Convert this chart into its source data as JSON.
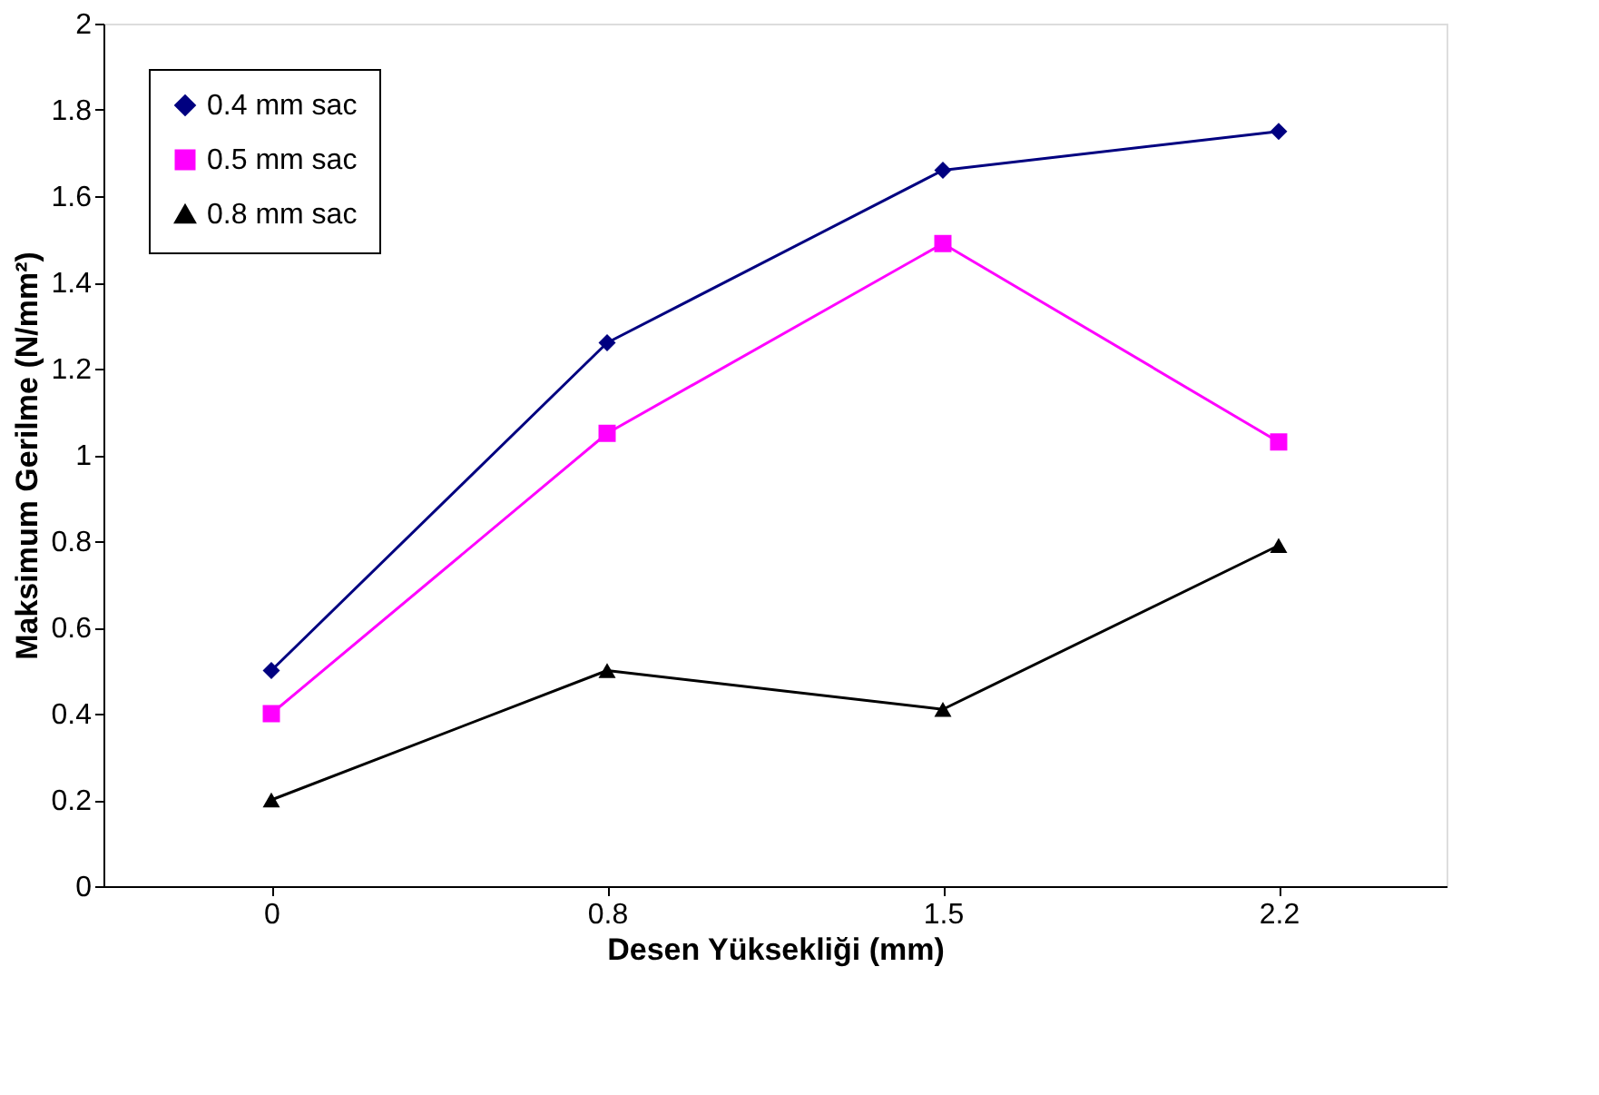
{
  "chart_data": {
    "type": "line",
    "xlabel": "Desen Yüksekliği (mm)",
    "ylabel": "Maksimum Gerilme (N/mm²)",
    "categories": [
      "0",
      "0.8",
      "1.5",
      "2.2"
    ],
    "ylim": [
      0,
      2
    ],
    "yticks": [
      0,
      0.2,
      0.4,
      0.6,
      0.8,
      1,
      1.2,
      1.4,
      1.6,
      1.8,
      2
    ],
    "grid": false,
    "legend": "top left",
    "line_style": "solid",
    "series": [
      {
        "name": "0.4 mm sac",
        "color": "#000080",
        "marker": "diamond",
        "values": [
          0.5,
          1.26,
          1.66,
          1.75
        ]
      },
      {
        "name": "0.5 mm sac",
        "color": "#ff00ff",
        "marker": "square",
        "values": [
          0.4,
          1.05,
          1.49,
          1.03
        ]
      },
      {
        "name": "0.8 mm sac",
        "color": "#000000",
        "marker": "triangle",
        "values": [
          0.2,
          0.5,
          0.41,
          0.79
        ]
      }
    ]
  }
}
